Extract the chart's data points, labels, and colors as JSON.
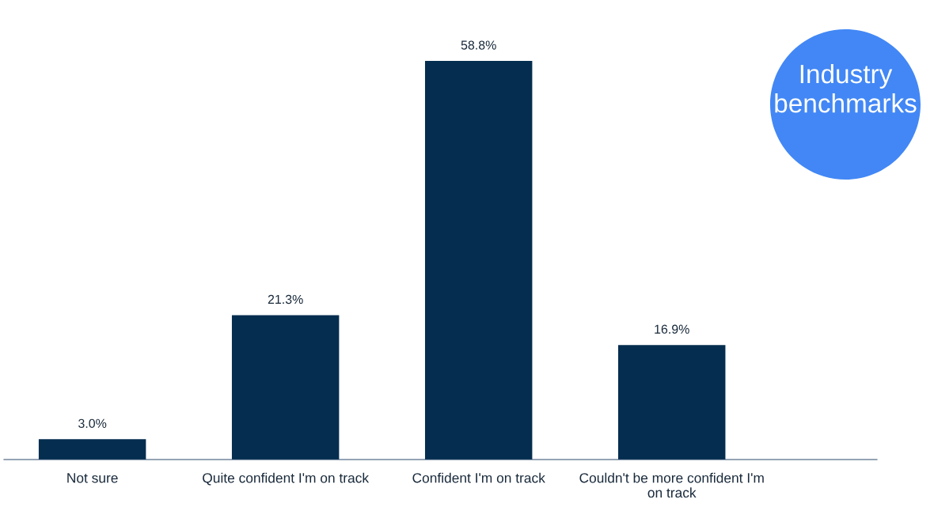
{
  "chart_data": {
    "type": "bar",
    "categories": [
      "Not sure",
      "Quite confident I'm on track",
      "Confident I'm on track",
      "Couldn't be more confident I'm\non track"
    ],
    "values": [
      3.0,
      21.3,
      58.8,
      16.9
    ],
    "value_labels": [
      "3.0%",
      "21.3%",
      "58.8%",
      "16.9%"
    ],
    "color": "#042d4f",
    "annotations": [
      "Industry benchmarks"
    ],
    "grid": false,
    "legend": false
  }
}
